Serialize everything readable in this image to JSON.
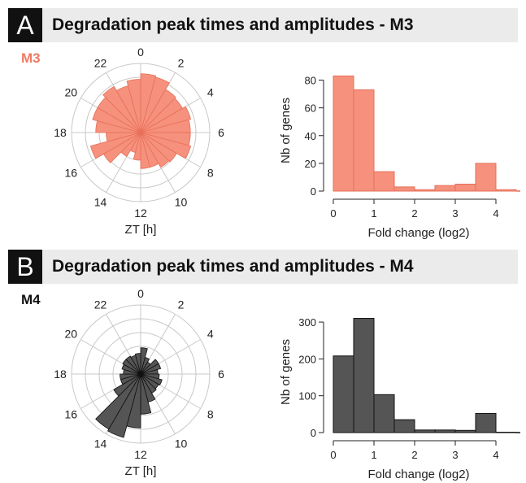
{
  "chart_data": [
    {
      "panel": "A",
      "title": "Degradation peak times and amplitudes - M3",
      "module": "M3",
      "color": "#f5917c",
      "edge": "#e8705a",
      "subcharts": [
        {
          "type": "polar_bar",
          "xlabel": "ZT [h]",
          "angle_labels": [
            "0",
            "2",
            "4",
            "6",
            "8",
            "10",
            "12",
            "14",
            "16",
            "18",
            "20",
            "22"
          ],
          "sectors": [
            {
              "start": 0,
              "end": 1,
              "value": 0.85
            },
            {
              "start": 1,
              "end": 2,
              "value": 0.83
            },
            {
              "start": 2,
              "end": 3,
              "value": 0.72
            },
            {
              "start": 3,
              "end": 4,
              "value": 0.7
            },
            {
              "start": 4,
              "end": 5,
              "value": 0.75
            },
            {
              "start": 5,
              "end": 6,
              "value": 0.72
            },
            {
              "start": 6,
              "end": 7,
              "value": 0.72
            },
            {
              "start": 7,
              "end": 8,
              "value": 0.75
            },
            {
              "start": 8,
              "end": 9,
              "value": 0.6
            },
            {
              "start": 9,
              "end": 10,
              "value": 0.58
            },
            {
              "start": 10,
              "end": 11,
              "value": 0.52
            },
            {
              "start": 11,
              "end": 12,
              "value": 0.52
            },
            {
              "start": 12,
              "end": 13,
              "value": 0.4
            },
            {
              "start": 13,
              "end": 14,
              "value": 0.3
            },
            {
              "start": 14,
              "end": 15,
              "value": 0.4
            },
            {
              "start": 15,
              "end": 16,
              "value": 0.62
            },
            {
              "start": 16,
              "end": 17,
              "value": 0.75
            },
            {
              "start": 17,
              "end": 18,
              "value": 0.5
            },
            {
              "start": 18,
              "end": 19,
              "value": 0.65
            },
            {
              "start": 19,
              "end": 20,
              "value": 0.72
            },
            {
              "start": 20,
              "end": 21,
              "value": 0.72
            },
            {
              "start": 21,
              "end": 22,
              "value": 0.77
            },
            {
              "start": 22,
              "end": 23,
              "value": 0.7
            },
            {
              "start": 23,
              "end": 24,
              "value": 0.77
            }
          ]
        },
        {
          "type": "bar",
          "xlabel": "Fold change (log2)",
          "ylabel": "Nb of genes",
          "xlim": [
            0,
            4.6
          ],
          "ylim": [
            0,
            85
          ],
          "xticks": [
            "0",
            "1",
            "2",
            "3",
            "4"
          ],
          "yticks": [
            "0",
            "20",
            "40",
            "60",
            "80"
          ],
          "bins": [
            [
              0,
              0.5
            ],
            [
              0.5,
              1
            ],
            [
              1,
              1.5
            ],
            [
              1.5,
              2
            ],
            [
              2,
              2.5
            ],
            [
              2.5,
              3
            ],
            [
              3,
              3.5
            ],
            [
              3.5,
              4
            ],
            [
              4,
              4.5
            ]
          ],
          "values": [
            83,
            73,
            14,
            3,
            1,
            4,
            5,
            20,
            1
          ]
        }
      ]
    },
    {
      "panel": "B",
      "title": "Degradation peak times and amplitudes - M4",
      "module": "M4",
      "color": "#555555",
      "edge": "#111111",
      "subcharts": [
        {
          "type": "polar_bar",
          "xlabel": "ZT [h]",
          "angle_labels": [
            "0",
            "2",
            "4",
            "6",
            "8",
            "10",
            "12",
            "14",
            "16",
            "18",
            "20",
            "22"
          ],
          "sectors": [
            {
              "start": 0,
              "end": 1,
              "value": 0.38
            },
            {
              "start": 1,
              "end": 2,
              "value": 0.25
            },
            {
              "start": 2,
              "end": 3,
              "value": 0.2
            },
            {
              "start": 3,
              "end": 4,
              "value": 0.3
            },
            {
              "start": 4,
              "end": 5,
              "value": 0.3
            },
            {
              "start": 5,
              "end": 6,
              "value": 0.25
            },
            {
              "start": 6,
              "end": 7,
              "value": 0.27
            },
            {
              "start": 7,
              "end": 8,
              "value": 0.32
            },
            {
              "start": 8,
              "end": 9,
              "value": 0.3
            },
            {
              "start": 9,
              "end": 10,
              "value": 0.32
            },
            {
              "start": 10,
              "end": 11,
              "value": 0.42
            },
            {
              "start": 11,
              "end": 12,
              "value": 0.58
            },
            {
              "start": 12,
              "end": 13,
              "value": 0.78
            },
            {
              "start": 13,
              "end": 14,
              "value": 0.95
            },
            {
              "start": 14,
              "end": 15,
              "value": 0.92
            },
            {
              "start": 15,
              "end": 16,
              "value": 0.45
            },
            {
              "start": 16,
              "end": 17,
              "value": 0.3
            },
            {
              "start": 17,
              "end": 18,
              "value": 0.3
            },
            {
              "start": 18,
              "end": 19,
              "value": 0.25
            },
            {
              "start": 19,
              "end": 20,
              "value": 0.28
            },
            {
              "start": 20,
              "end": 21,
              "value": 0.3
            },
            {
              "start": 21,
              "end": 22,
              "value": 0.3
            },
            {
              "start": 22,
              "end": 23,
              "value": 0.28
            },
            {
              "start": 23,
              "end": 24,
              "value": 0.3
            }
          ]
        },
        {
          "type": "bar",
          "xlabel": "Fold change (log2)",
          "ylabel": "Nb of genes",
          "xlim": [
            0,
            4.6
          ],
          "ylim": [
            0,
            320
          ],
          "xticks": [
            "0",
            "1",
            "2",
            "3",
            "4"
          ],
          "yticks": [
            "0",
            "100",
            "200",
            "300"
          ],
          "bins": [
            [
              0,
              0.5
            ],
            [
              0.5,
              1
            ],
            [
              1,
              1.5
            ],
            [
              1.5,
              2
            ],
            [
              2,
              2.5
            ],
            [
              2.5,
              3
            ],
            [
              3,
              3.5
            ],
            [
              3.5,
              4
            ],
            [
              4,
              4.5
            ]
          ],
          "values": [
            208,
            310,
            103,
            35,
            7,
            7,
            6,
            52,
            1
          ]
        }
      ]
    }
  ]
}
